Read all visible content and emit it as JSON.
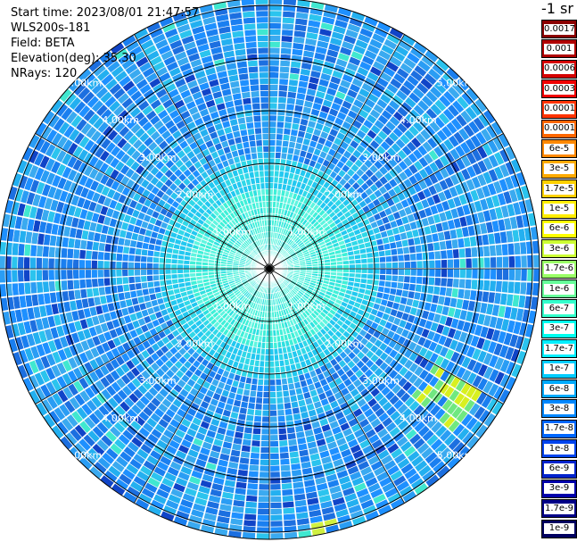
{
  "info": {
    "start_time": "Start time: 2023/08/01 21:47:57",
    "station": "WLS200s-181",
    "field": "Field: BETA",
    "elevation": "Elevation(deg): 35.30",
    "nrays": "NRays: 120"
  },
  "colorbar": {
    "unit": "-1 sr",
    "levels": [
      {
        "label": "0.0017",
        "color": "#8b0000"
      },
      {
        "label": "0.001",
        "color": "#b00000"
      },
      {
        "label": "0.0006",
        "color": "#d40000"
      },
      {
        "label": "0.0003",
        "color": "#f00000"
      },
      {
        "label": "0.00017",
        "color": "#ff3300"
      },
      {
        "label": "0.0001",
        "color": "#ff6600"
      },
      {
        "label": "6e-5",
        "color": "#ff8800"
      },
      {
        "label": "3e-5",
        "color": "#ffaa00"
      },
      {
        "label": "1.7e-5",
        "color": "#ffd000"
      },
      {
        "label": "1e-5",
        "color": "#ffee00"
      },
      {
        "label": "6e-6",
        "color": "#ffff00"
      },
      {
        "label": "3e-6",
        "color": "#ccff33"
      },
      {
        "label": "1.7e-6",
        "color": "#99ff66"
      },
      {
        "label": "1e-6",
        "color": "#66ff99"
      },
      {
        "label": "6e-7",
        "color": "#33ffcc"
      },
      {
        "label": "3e-7",
        "color": "#00ffee"
      },
      {
        "label": "1.7e-7",
        "color": "#00eeff"
      },
      {
        "label": "1e-7",
        "color": "#00ccff"
      },
      {
        "label": "6e-8",
        "color": "#00aaff"
      },
      {
        "label": "3e-8",
        "color": "#0088ff"
      },
      {
        "label": "1.7e-8",
        "color": "#0066ff"
      },
      {
        "label": "1e-8",
        "color": "#0044ee"
      },
      {
        "label": "6e-9",
        "color": "#0022cc"
      },
      {
        "label": "3e-9",
        "color": "#0000aa"
      },
      {
        "label": "1.7e-9",
        "color": "#000088"
      },
      {
        "label": "1e-9",
        "color": "#000060"
      }
    ]
  },
  "range_rings": {
    "labels": [
      "1.00km",
      "2.00km",
      "3.00km",
      "4.00km",
      "5.00km"
    ]
  }
}
